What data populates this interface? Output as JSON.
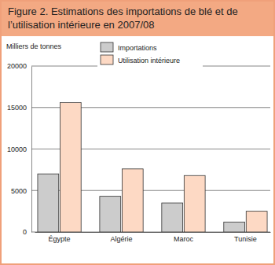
{
  "chart_data": {
    "type": "bar",
    "title": "Figure 2. Estimations des importations de blé et de l’utilisation intérieure en 2007/08",
    "y_label": "Milliers de tonnes",
    "categories": [
      "Égypte",
      "Algérie",
      "Maroc",
      "Tunisie"
    ],
    "series": [
      {
        "name": "Importations",
        "color": "#cccccc",
        "values": [
          7000,
          4300,
          3500,
          1200
        ]
      },
      {
        "name": "Utilisation intérieure",
        "color": "#fdd9c4",
        "values": [
          15600,
          7600,
          6800,
          2500
        ]
      }
    ],
    "ylim": [
      0,
      20000
    ],
    "yticks": [
      0,
      5000,
      10000,
      15000,
      20000
    ],
    "grid": true,
    "legend": "top"
  }
}
